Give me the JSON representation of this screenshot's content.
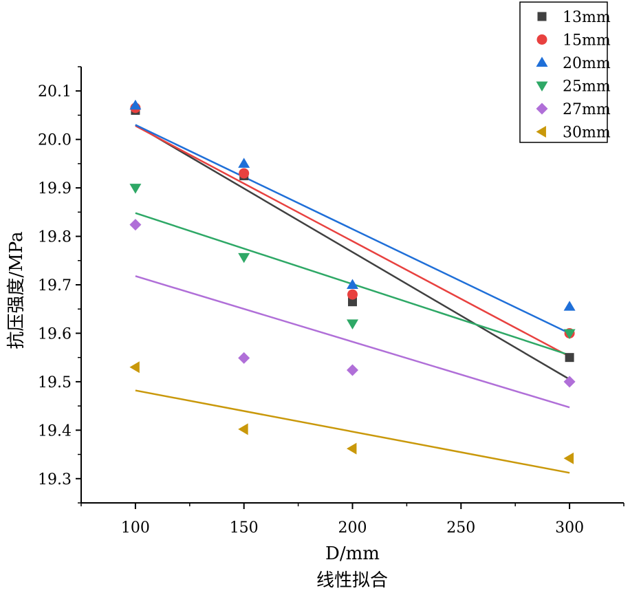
{
  "chart_data": {
    "type": "scatter",
    "title": "",
    "caption": "线性拟合",
    "xlabel": "D/mm",
    "ylabel": "抗压强度/MPa",
    "xlim": [
      75,
      325
    ],
    "ylim": [
      19.25,
      20.15
    ],
    "x_ticks": [
      100,
      150,
      200,
      250,
      300
    ],
    "x_tick_labels": [
      "100",
      "150",
      "200",
      "250",
      "300"
    ],
    "y_ticks": [
      19.3,
      19.4,
      19.5,
      19.6,
      19.7,
      19.8,
      19.9,
      20.0,
      20.1
    ],
    "y_tick_labels": [
      "19.3",
      "19.4",
      "19.5",
      "19.6",
      "19.7",
      "19.8",
      "19.9",
      "20.0",
      "20.1"
    ],
    "legend_position": "top-right",
    "x": [
      100,
      150,
      200,
      300
    ],
    "series": [
      {
        "name": "13mm",
        "marker": "square",
        "color": "#404040",
        "values": [
          20.06,
          19.925,
          19.665,
          19.55
        ],
        "fit": [
          20.03,
          19.505
        ]
      },
      {
        "name": "15mm",
        "marker": "circle",
        "color": "#e8413f",
        "values": [
          20.065,
          19.93,
          19.68,
          19.6
        ],
        "fit": [
          20.028,
          19.552
        ]
      },
      {
        "name": "20mm",
        "marker": "triangle-up",
        "color": "#1f6fd8",
        "values": [
          20.07,
          19.95,
          19.7,
          19.655
        ],
        "fit": [
          20.03,
          19.6
        ]
      },
      {
        "name": "25mm",
        "marker": "triangle-down",
        "color": "#2ea866",
        "values": [
          19.9,
          19.757,
          19.62,
          19.6
        ],
        "fit": [
          19.848,
          19.555
        ]
      },
      {
        "name": "27mm",
        "marker": "diamond",
        "color": "#b06fd8",
        "values": [
          19.824,
          19.549,
          19.524,
          19.5
        ],
        "fit": [
          19.718,
          19.447
        ]
      },
      {
        "name": "30mm",
        "marker": "triangle-left",
        "color": "#c9980a",
        "values": [
          19.53,
          19.402,
          19.362,
          19.342
        ],
        "fit": [
          19.482,
          19.312
        ]
      }
    ]
  }
}
